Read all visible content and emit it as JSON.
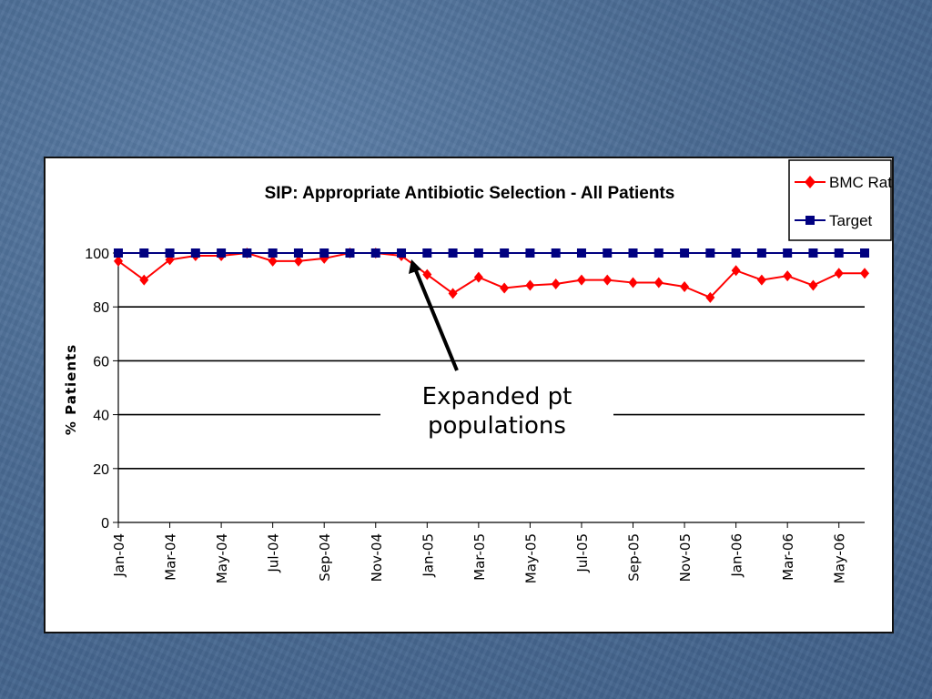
{
  "chart_data": {
    "type": "line",
    "title": "SIP: Appropriate Antibiotic Selection - All Patients",
    "xlabel": "",
    "ylabel": "% Patients",
    "ylim": [
      0,
      100
    ],
    "yticks": [
      0,
      20,
      40,
      60,
      80,
      100
    ],
    "grid": true,
    "legend_position": "top-right",
    "x": [
      "Jan-04",
      "Feb-04",
      "Mar-04",
      "Apr-04",
      "May-04",
      "Jun-04",
      "Jul-04",
      "Aug-04",
      "Sep-04",
      "Oct-04",
      "Nov-04",
      "Dec-04",
      "Jan-05",
      "Feb-05",
      "Mar-05",
      "Apr-05",
      "May-05",
      "Jun-05",
      "Jul-05",
      "Aug-05",
      "Sep-05",
      "Oct-05",
      "Nov-05",
      "Dec-05",
      "Jan-06",
      "Feb-06",
      "Mar-06",
      "Apr-06",
      "May-06",
      "Jun-06"
    ],
    "xtick_labels": [
      "Jan-04",
      "Mar-04",
      "May-04",
      "Jul-04",
      "Sep-04",
      "Nov-04",
      "Jan-05",
      "Mar-05",
      "May-05",
      "Jul-05",
      "Sep-05",
      "Nov-05",
      "Jan-06",
      "Mar-06",
      "May-06"
    ],
    "series": [
      {
        "name": "BMC Rate",
        "color": "#ff0000",
        "marker": "diamond",
        "values": [
          97,
          90,
          97.5,
          99,
          99,
          100,
          97,
          97,
          98,
          100,
          100,
          99,
          92,
          85,
          91,
          87,
          88,
          88.5,
          90,
          90,
          89,
          89,
          87.5,
          83.5,
          93.5,
          90,
          91.5,
          88,
          92.5,
          92.5
        ]
      },
      {
        "name": "Target",
        "color": "#000080",
        "marker": "square",
        "values": [
          100,
          100,
          100,
          100,
          100,
          100,
          100,
          100,
          100,
          100,
          100,
          100,
          100,
          100,
          100,
          100,
          100,
          100,
          100,
          100,
          100,
          100,
          100,
          100,
          100,
          100,
          100,
          100,
          100,
          100
        ]
      }
    ],
    "annotations": [
      {
        "text_lines": [
          "Expanded pt",
          "populations"
        ],
        "points_to": "Dec-04"
      }
    ]
  },
  "colors": {
    "background": "#4a6b93",
    "panel": "#ffffff",
    "bmc_rate": "#ff0000",
    "target": "#000080"
  }
}
